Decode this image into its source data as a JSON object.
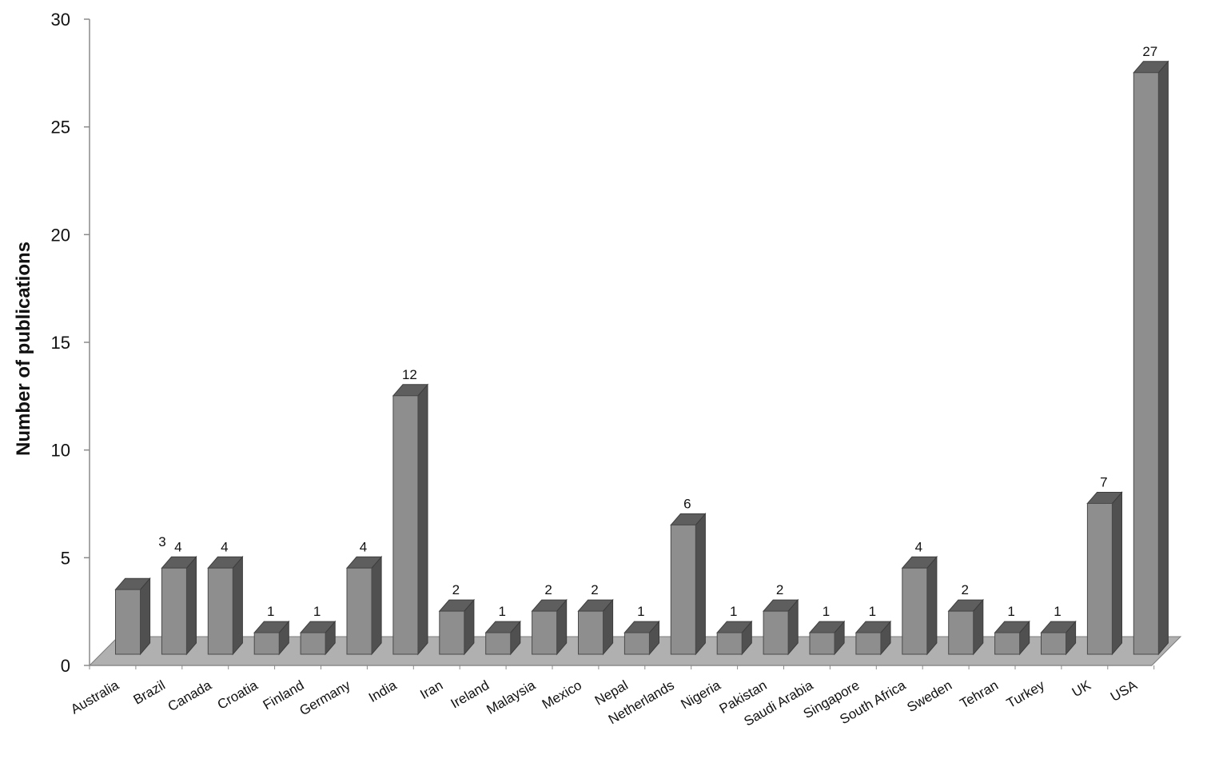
{
  "chart_data": {
    "type": "bar",
    "style": "3d-column",
    "title": "",
    "xlabel": "",
    "ylabel": "Number of publications",
    "ylim": [
      0,
      30
    ],
    "yticks": [
      0,
      5,
      10,
      15,
      20,
      25,
      30
    ],
    "grid": false,
    "legend": "none",
    "colors": {
      "bar_front": "#8e8e8e",
      "bar_top": "#5e5e5e",
      "bar_side": "#505050",
      "floor": "#b0b0b0",
      "axis": "#8a8a8a"
    },
    "categories": [
      "Australia",
      "Brazil",
      "Canada",
      "Croatia",
      "Finland",
      "Germany",
      "India",
      "Iran",
      "Ireland",
      "Malaysia",
      "Mexico",
      "Nepal",
      "Netherlands",
      "Nigeria",
      "Pakistan",
      "Saudi Arabia",
      "Singapore",
      "South Africa",
      "Sweden",
      "Tehran",
      "Turkey",
      "UK",
      "USA"
    ],
    "values": [
      3,
      4,
      4,
      1,
      1,
      4,
      12,
      2,
      1,
      2,
      2,
      1,
      6,
      1,
      2,
      1,
      1,
      4,
      2,
      1,
      1,
      7,
      27
    ],
    "data_labels": [
      "3",
      "4",
      "4",
      "1",
      "1",
      "4",
      "12",
      "2",
      "1",
      "2",
      "2",
      "1",
      "6",
      "1",
      "2",
      "1",
      "1",
      "4",
      "2",
      "1",
      "1",
      "7",
      "27"
    ]
  }
}
